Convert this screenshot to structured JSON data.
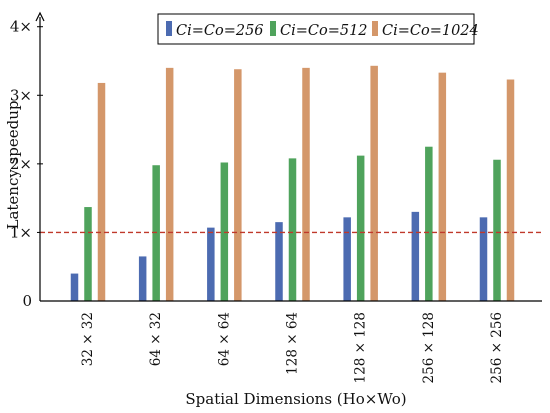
{
  "chart_data": {
    "type": "bar",
    "categories": [
      "32 × 32",
      "64 × 32",
      "64 × 64",
      "128 × 64",
      "128 × 128",
      "256 × 128",
      "256 × 256"
    ],
    "series": [
      {
        "name": "Ci=Co=256",
        "color": "#4c6bb1",
        "values": [
          0.4,
          0.65,
          1.07,
          1.15,
          1.22,
          1.3,
          1.22
        ]
      },
      {
        "name": "Ci=Co=512",
        "color": "#4fa35c",
        "values": [
          1.37,
          1.98,
          2.02,
          2.08,
          2.12,
          2.25,
          2.06
        ]
      },
      {
        "name": "Ci=Co=1024",
        "color": "#d4976a",
        "values": [
          3.18,
          3.4,
          3.38,
          3.4,
          3.43,
          3.33,
          3.23
        ]
      }
    ],
    "xlabel": "Spatial Dimensions (Ho×Wo)",
    "ylabel": "Latency speedup",
    "ylim": [
      0,
      4.2
    ],
    "yticks": [
      0,
      1,
      2,
      3,
      4
    ],
    "ytick_labels": [
      "0",
      "1×",
      "2×",
      "3×",
      "4×"
    ],
    "reference_line": {
      "y": 1,
      "style": "dashed",
      "color": "#c0392b"
    },
    "legend_position": "top-right",
    "grid": false
  }
}
